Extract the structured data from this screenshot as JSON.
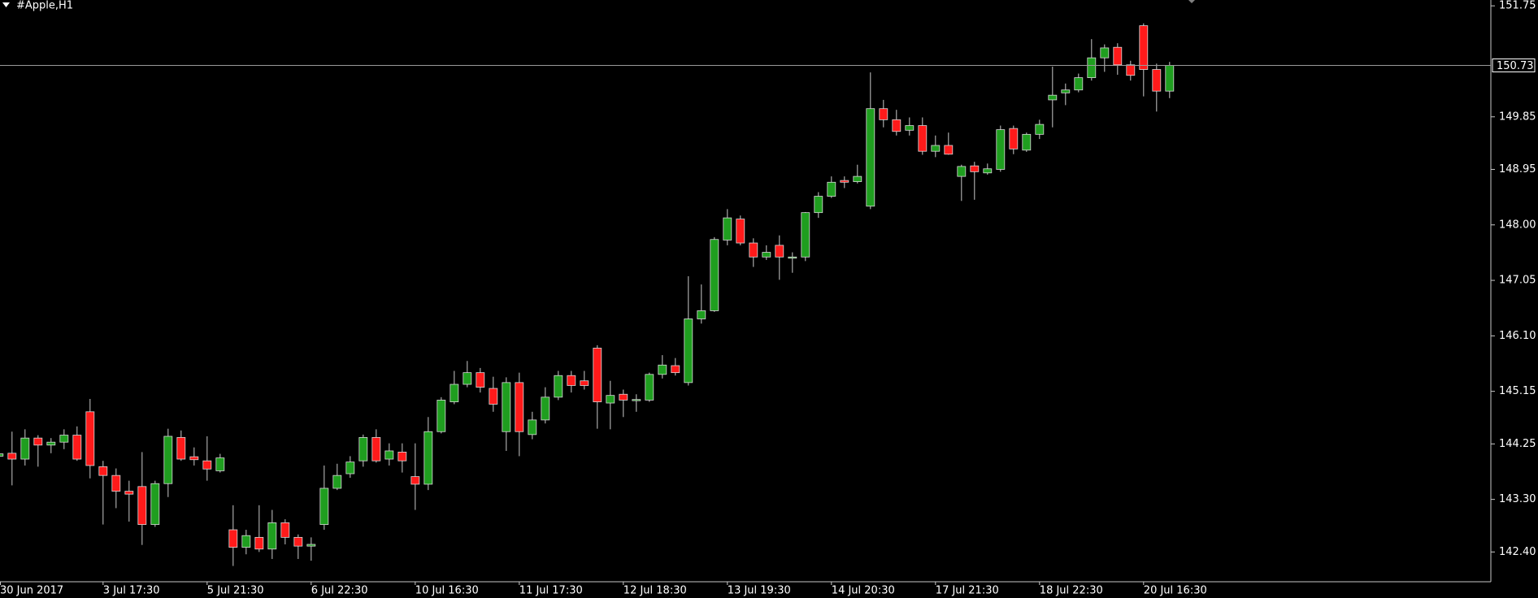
{
  "chart_data": {
    "type": "candlestick",
    "title": "#Apple,H1",
    "up_color": "#1f9e1f",
    "down_color": "#ff1a1a",
    "wick_color": "#c8c8c8",
    "grid": false,
    "ylim": [
      141.89,
      151.85
    ],
    "yticks": [
      151.75,
      149.85,
      148.95,
      {
        "value": 148,
        "label": "148.00"
      },
      147.05,
      {
        "value": 146.1,
        "label": "146.10"
      },
      145.15,
      144.25,
      {
        "value": 143.3,
        "label": "143.30"
      },
      {
        "value": 142.4,
        "label": "142.40"
      }
    ],
    "last_price": 150.73,
    "categories": [
      "30 Jun 2017",
      null,
      null,
      null,
      null,
      null,
      null,
      null,
      "3 Jul 17:30",
      null,
      null,
      null,
      null,
      null,
      null,
      null,
      "5 Jul 21:30",
      null,
      null,
      null,
      null,
      null,
      null,
      null,
      "6 Jul 22:30",
      null,
      null,
      null,
      null,
      null,
      null,
      null,
      "10 Jul 16:30",
      null,
      null,
      null,
      null,
      null,
      null,
      null,
      "11 Jul 17:30",
      null,
      null,
      null,
      null,
      null,
      null,
      null,
      "12 Jul 18:30",
      null,
      null,
      null,
      null,
      null,
      null,
      null,
      "13 Jul 19:30",
      null,
      null,
      null,
      null,
      null,
      null,
      null,
      "14 Jul 20:30",
      null,
      null,
      null,
      null,
      null,
      null,
      null,
      "17 Jul 21:30",
      null,
      null,
      null,
      null,
      null,
      null,
      null,
      "18 Jul 22:30",
      null,
      null,
      null,
      null,
      null,
      null,
      null,
      "20 Jul 16:30",
      null,
      null
    ],
    "open": [
      144.04,
      144.09,
      143.99,
      144.35,
      144.23,
      144.28,
      144.4,
      144.8,
      143.86,
      143.71,
      143.44,
      143.52,
      142.87,
      143.57,
      144.36,
      144.03,
      143.96,
      143.79,
      142.78,
      142.48,
      142.65,
      142.45,
      142.9,
      142.65,
      142.5,
      142.87,
      143.49,
      143.74,
      143.96,
      144.36,
      143.99,
      144.11,
      143.69,
      143.56,
      144.46,
      144.97,
      145.27,
      145.47,
      145.2,
      144.46,
      145.3,
      144.41,
      144.66,
      145.05,
      145.42,
      145.33,
      145.89,
      144.95,
      145.1,
      144.99,
      145.0,
      145.44,
      145.59,
      145.3,
      146.39,
      146.53,
      147.74,
      148.1,
      147.69,
      147.45,
      147.65,
      147.43,
      147.45,
      148.21,
      148.49,
      148.76,
      148.74,
      148.32,
      149.99,
      149.8,
      149.62,
      149.7,
      149.26,
      149.36,
      148.83,
      149.01,
      148.89,
      148.95,
      149.65,
      149.28,
      149.55,
      150.14,
      150.26,
      150.31,
      150.52,
      150.86,
      151.04,
      150.74,
      151.41,
      150.66,
      150.29
    ],
    "high": [
      144.11,
      144.46,
      144.5,
      144.4,
      144.35,
      144.5,
      144.55,
      145.02,
      143.96,
      143.83,
      143.62,
      144.11,
      143.62,
      144.51,
      144.48,
      144.19,
      144.38,
      144.08,
      143.2,
      142.78,
      143.2,
      143.12,
      142.96,
      142.7,
      142.65,
      143.88,
      143.91,
      144.04,
      144.41,
      144.5,
      144.26,
      144.26,
      144.26,
      144.71,
      145.05,
      145.5,
      145.67,
      145.55,
      145.4,
      145.39,
      145.47,
      144.8,
      145.22,
      145.5,
      145.5,
      145.5,
      145.94,
      145.33,
      145.18,
      145.1,
      145.47,
      145.77,
      145.72,
      147.12,
      146.98,
      147.79,
      148.27,
      148.16,
      147.77,
      147.65,
      147.82,
      147.53,
      148.22,
      148.56,
      148.83,
      148.83,
      149.03,
      150.61,
      150.14,
      149.97,
      149.84,
      149.84,
      149.53,
      149.58,
      149.03,
      149.08,
      149.05,
      149.7,
      149.7,
      149.58,
      149.8,
      150.71,
      150.42,
      150.59,
      151.18,
      151.09,
      151.11,
      150.81,
      151.45,
      150.76,
      150.79
    ],
    "low": [
      144.0,
      143.54,
      143.88,
      143.86,
      144.09,
      144.16,
      143.96,
      143.66,
      142.87,
      143.15,
      142.92,
      142.52,
      142.83,
      143.34,
      143.96,
      143.88,
      143.62,
      143.76,
      142.16,
      142.36,
      142.4,
      142.28,
      142.53,
      142.28,
      142.25,
      142.78,
      143.46,
      143.67,
      143.86,
      143.93,
      143.88,
      143.76,
      143.12,
      143.46,
      144.43,
      144.93,
      145.22,
      145.13,
      144.8,
      144.13,
      144.04,
      144.33,
      144.6,
      145.0,
      145.13,
      145.18,
      144.51,
      144.5,
      144.71,
      144.8,
      144.97,
      145.37,
      145.42,
      145.25,
      146.31,
      146.51,
      147.65,
      147.65,
      147.28,
      147.4,
      147.06,
      147.18,
      147.38,
      148.12,
      148.46,
      148.63,
      148.71,
      148.27,
      149.67,
      149.53,
      149.53,
      149.2,
      149.16,
      149.2,
      148.41,
      148.43,
      148.86,
      148.91,
      149.21,
      149.25,
      149.47,
      149.67,
      150.05,
      150.27,
      150.47,
      150.62,
      150.57,
      150.47,
      150.2,
      149.94,
      150.17
    ],
    "close": [
      144.08,
      143.99,
      144.35,
      144.23,
      144.28,
      144.4,
      143.99,
      143.88,
      143.71,
      143.44,
      143.39,
      142.87,
      143.57,
      144.38,
      143.99,
      143.98,
      143.82,
      144.01,
      142.48,
      142.68,
      142.45,
      142.9,
      142.65,
      142.5,
      142.53,
      143.49,
      143.71,
      143.94,
      144.36,
      143.96,
      144.13,
      143.96,
      143.56,
      144.46,
      145.0,
      145.27,
      145.47,
      145.22,
      144.93,
      145.3,
      144.46,
      144.66,
      145.05,
      145.42,
      145.25,
      145.25,
      144.97,
      145.08,
      145.0,
      145.01,
      145.44,
      145.6,
      145.47,
      146.39,
      146.53,
      147.75,
      148.12,
      147.69,
      147.45,
      147.53,
      147.45,
      147.45,
      148.21,
      148.49,
      148.73,
      148.73,
      148.83,
      149.99,
      149.8,
      149.6,
      149.7,
      149.26,
      149.36,
      149.21,
      149.0,
      148.91,
      148.96,
      149.63,
      149.3,
      149.55,
      149.72,
      150.22,
      150.31,
      150.52,
      150.86,
      151.03,
      150.74,
      150.56,
      150.66,
      150.29,
      150.73
    ]
  }
}
